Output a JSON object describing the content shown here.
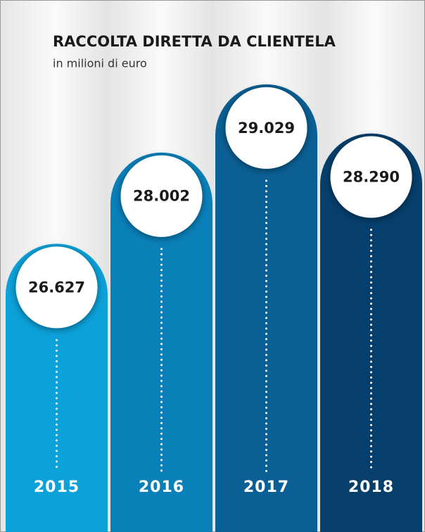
{
  "chart_data": {
    "type": "bar",
    "title": "RACCOLTA DIRETTA DA CLIENTELA",
    "subtitle": "in milioni di euro",
    "categories": [
      "2015",
      "2016",
      "2017",
      "2018"
    ],
    "values": [
      26627,
      28002,
      29029,
      28290
    ],
    "value_labels": [
      "26.627",
      "28.002",
      "29.029",
      "28.290"
    ],
    "colors": [
      "#0ca1d9",
      "#0a80b9",
      "#0a6094",
      "#063f6b"
    ],
    "ylim": [
      22400,
      30300
    ]
  }
}
